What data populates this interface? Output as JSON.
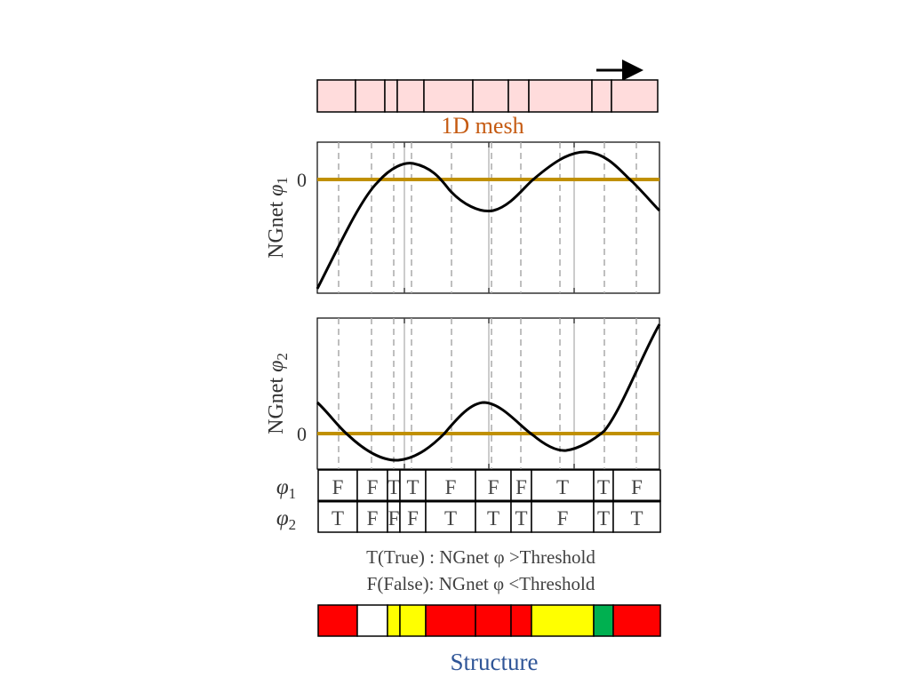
{
  "mesh": {
    "label": "1D mesh",
    "cell_count": 10,
    "fill": "#ffdcdc"
  },
  "plots": [
    {
      "ylabel": "NGnet",
      "phi": "φ",
      "sub": "1",
      "zero_label": "0"
    },
    {
      "ylabel": "NGnet",
      "phi": "φ",
      "sub": "2",
      "zero_label": "0"
    }
  ],
  "threshold_color": "#c09000",
  "table": {
    "rows": [
      {
        "phi": "φ",
        "sub": "1",
        "cells": [
          "F",
          "F",
          "T",
          "T",
          "F",
          "F",
          "F",
          "T",
          "T",
          "F"
        ]
      },
      {
        "phi": "φ",
        "sub": "2",
        "cells": [
          "T",
          "F",
          "F",
          "F",
          "T",
          "T",
          "T",
          "F",
          "T",
          "T"
        ]
      }
    ]
  },
  "legend": {
    "true_line": "T(True) : NGnet φ >Threshold",
    "false_line": "F(False): NGnet φ <Threshold"
  },
  "structure": {
    "label": "Structure",
    "colors": [
      "#ff0000",
      "#ffffff",
      "#ffff00",
      "#ffff00",
      "#ff0000",
      "#ff0000",
      "#ff0000",
      "#ffff00",
      "#00b050",
      "#ff0000"
    ]
  }
}
